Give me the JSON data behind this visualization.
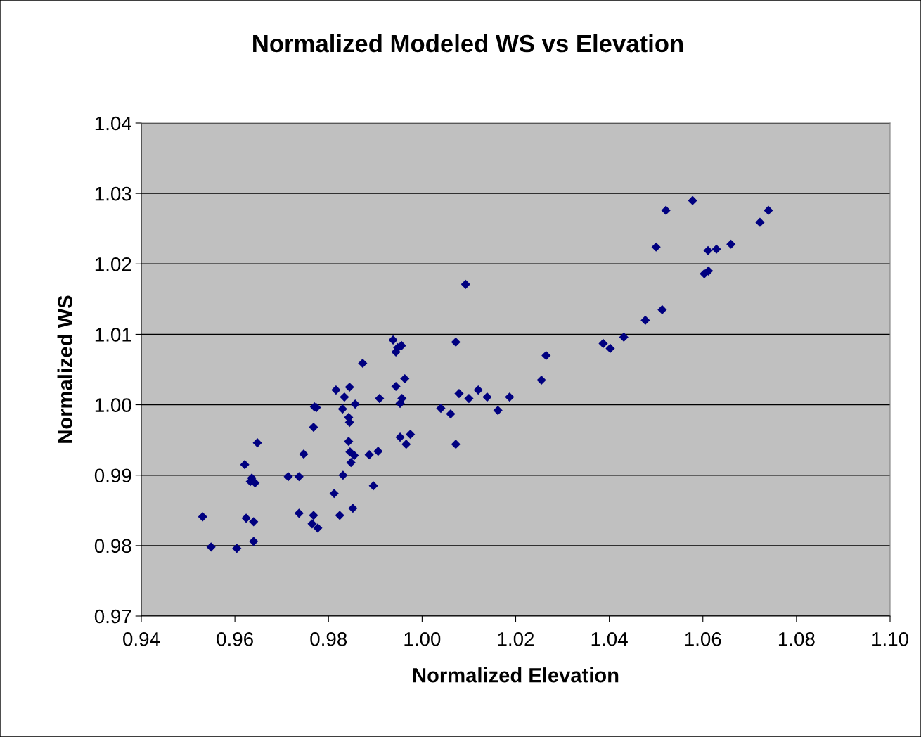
{
  "chart_data": {
    "type": "scatter",
    "title": "Normalized Modeled WS vs Elevation",
    "xlabel": "Normalized Elevation",
    "ylabel": "Normalized WS",
    "xlim": [
      0.94,
      1.1
    ],
    "xticks": [
      {
        "value": 0.94,
        "label": "0.94"
      },
      {
        "value": 0.96,
        "label": "0.96"
      },
      {
        "value": 0.98,
        "label": "0.98"
      },
      {
        "value": 1.0,
        "label": "1.00"
      },
      {
        "value": 1.02,
        "label": "1.02"
      },
      {
        "value": 1.04,
        "label": "1.04"
      },
      {
        "value": 1.06,
        "label": "1.06"
      },
      {
        "value": 1.08,
        "label": "1.08"
      },
      {
        "value": 1.1,
        "label": "1.10"
      }
    ],
    "ylim": [
      0.97,
      1.04
    ],
    "yticks": [
      {
        "value": 0.97,
        "label": "0.97"
      },
      {
        "value": 0.98,
        "label": "0.98"
      },
      {
        "value": 0.99,
        "label": "0.99"
      },
      {
        "value": 1.0,
        "label": "1.00"
      },
      {
        "value": 1.01,
        "label": "1.01"
      },
      {
        "value": 1.02,
        "label": "1.02"
      },
      {
        "value": 1.03,
        "label": "1.03"
      },
      {
        "value": 1.04,
        "label": "1.04"
      }
    ],
    "grid": "y",
    "marker": "diamond",
    "legend": false,
    "series": [
      {
        "color": "#000080",
        "x": [
          0.9531,
          0.9549,
          0.9604,
          0.9621,
          0.9624,
          0.9633,
          0.9636,
          0.964,
          0.964,
          0.9643,
          0.9648,
          0.9714,
          0.9737,
          0.9737,
          0.9747,
          0.9768,
          0.977,
          0.9774,
          0.9768,
          0.9765,
          0.9777,
          0.9812,
          0.9816,
          0.9824,
          0.983,
          0.9831,
          0.9834,
          0.9845,
          0.9843,
          0.9845,
          0.9843,
          0.9846,
          0.9848,
          0.9855,
          0.9857,
          0.9852,
          0.9873,
          0.9887,
          0.9896,
          0.9906,
          0.9909,
          0.9938,
          0.9944,
          0.9948,
          0.9956,
          0.9944,
          0.9953,
          0.9953,
          0.9957,
          0.9963,
          0.9966,
          0.9975,
          1.004,
          1.0061,
          1.0072,
          1.0072,
          1.0079,
          1.0093,
          1.01,
          1.012,
          1.0139,
          1.0162,
          1.0187,
          1.0255,
          1.0265,
          1.0387,
          1.0402,
          1.0431,
          1.0477,
          1.05,
          1.0513,
          1.0521,
          1.0578,
          1.0603,
          1.0611,
          1.0612,
          1.0629,
          1.066,
          1.0722,
          1.074
        ],
        "values": [
          0.9841,
          0.9798,
          0.9796,
          0.9915,
          0.9839,
          0.9891,
          0.9896,
          0.9806,
          0.9834,
          0.9889,
          0.9946,
          0.9898,
          0.9898,
          0.9846,
          0.993,
          0.9968,
          0.9997,
          0.9996,
          0.9843,
          0.9831,
          0.9825,
          0.9874,
          1.0021,
          0.9843,
          0.9994,
          0.99,
          1.0011,
          1.0025,
          0.9982,
          0.9975,
          0.9948,
          0.9933,
          0.9918,
          0.9928,
          1.0001,
          0.9853,
          1.0059,
          0.9929,
          0.9885,
          0.9934,
          1.0009,
          1.0092,
          1.0075,
          1.0081,
          1.0084,
          1.0026,
          1.0002,
          0.9954,
          1.0009,
          1.0037,
          0.9944,
          0.9958,
          0.9995,
          0.9987,
          1.0089,
          0.9944,
          1.0016,
          1.0171,
          1.0009,
          1.0021,
          1.0011,
          0.9992,
          1.0011,
          1.0035,
          1.007,
          1.0087,
          1.008,
          1.0096,
          1.012,
          1.0224,
          1.0135,
          1.0276,
          1.029,
          1.0186,
          1.0219,
          1.019,
          1.0221,
          1.0228,
          1.0259,
          1.0276
        ]
      }
    ]
  }
}
